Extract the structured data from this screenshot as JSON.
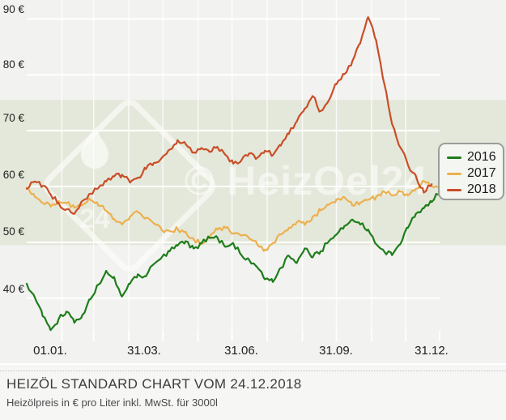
{
  "watermark": {
    "text": "© HeizOel24",
    "badge": "24"
  },
  "caption": {
    "title": "HEIZÖL STANDARD CHART VOM 24.12.2018",
    "subtitle": "Heizölpreis in € pro Liter inkl. MwSt. für 3000l"
  },
  "chart_data": {
    "type": "line",
    "title": "HEIZÖL STANDARD CHART VOM 24.12.2018",
    "subtitle": "Heizölpreis in € pro Liter inkl. MwSt. für 3000l",
    "xlabel": "",
    "ylabel": "",
    "ylim": [
      32,
      92
    ],
    "grid": true,
    "legend_position": "right",
    "background": "#f2f2f0",
    "band_color": "#e4e8da",
    "grid_color": "#ffffff",
    "band": {
      "from": 49.5,
      "to": 75.5
    },
    "y_ticks": [
      {
        "value": 90,
        "label": "90 €"
      },
      {
        "value": 80,
        "label": "80 €"
      },
      {
        "value": 70,
        "label": "70 €"
      },
      {
        "value": 60,
        "label": "60 €"
      },
      {
        "value": 50,
        "label": "50 €"
      },
      {
        "value": 40,
        "label": "40 €"
      }
    ],
    "x_ticks": [
      {
        "label": "01.01.",
        "day": 0
      },
      {
        "label": "31.03.",
        "day": 89
      },
      {
        "label": "31.06.",
        "day": 180
      },
      {
        "label": "31.09.",
        "day": 272
      },
      {
        "label": "31.12.",
        "day": 364
      }
    ],
    "series": [
      {
        "name": "2016",
        "color": "#1e7d1b",
        "points": [
          [
            0,
            42.6
          ],
          [
            7,
            40.2
          ],
          [
            14,
            36.8
          ],
          [
            21,
            34.3
          ],
          [
            28,
            36.2
          ],
          [
            35,
            37.6
          ],
          [
            42,
            35.6
          ],
          [
            49,
            37.0
          ],
          [
            56,
            39.8
          ],
          [
            63,
            42.4
          ],
          [
            70,
            44.9
          ],
          [
            77,
            43.8
          ],
          [
            84,
            40.3
          ],
          [
            91,
            42.6
          ],
          [
            98,
            44.3
          ],
          [
            105,
            43.9
          ],
          [
            112,
            46.1
          ],
          [
            119,
            47.3
          ],
          [
            126,
            48.4
          ],
          [
            133,
            49.4
          ],
          [
            140,
            50.2
          ],
          [
            147,
            48.9
          ],
          [
            154,
            49.8
          ],
          [
            161,
            50.8
          ],
          [
            168,
            50.9
          ],
          [
            175,
            49.2
          ],
          [
            182,
            49.9
          ],
          [
            189,
            47.8
          ],
          [
            196,
            46.9
          ],
          [
            203,
            45.6
          ],
          [
            210,
            43.4
          ],
          [
            217,
            42.9
          ],
          [
            224,
            45.4
          ],
          [
            231,
            47.6
          ],
          [
            238,
            46.3
          ],
          [
            245,
            48.9
          ],
          [
            252,
            47.3
          ],
          [
            259,
            48.4
          ],
          [
            266,
            50.1
          ],
          [
            273,
            51.4
          ],
          [
            280,
            52.9
          ],
          [
            287,
            54.1
          ],
          [
            294,
            53.2
          ],
          [
            301,
            52.3
          ],
          [
            308,
            49.7
          ],
          [
            315,
            48.4
          ],
          [
            322,
            47.7
          ],
          [
            329,
            49.6
          ],
          [
            336,
            52.6
          ],
          [
            343,
            55.1
          ],
          [
            350,
            56.1
          ],
          [
            357,
            57.2
          ],
          [
            364,
            59.2
          ]
        ]
      },
      {
        "name": "2017",
        "color": "#ecb04f",
        "points": [
          [
            0,
            59.8
          ],
          [
            7,
            58.2
          ],
          [
            14,
            57.1
          ],
          [
            21,
            56.4
          ],
          [
            28,
            57.4
          ],
          [
            35,
            57.0
          ],
          [
            42,
            56.2
          ],
          [
            49,
            56.7
          ],
          [
            56,
            57.6
          ],
          [
            63,
            56.6
          ],
          [
            70,
            55.7
          ],
          [
            77,
            54.2
          ],
          [
            84,
            53.2
          ],
          [
            91,
            54.6
          ],
          [
            98,
            55.4
          ],
          [
            105,
            54.4
          ],
          [
            112,
            53.4
          ],
          [
            119,
            52.2
          ],
          [
            126,
            52.0
          ],
          [
            133,
            52.4
          ],
          [
            140,
            51.9
          ],
          [
            147,
            50.6
          ],
          [
            154,
            49.7
          ],
          [
            161,
            50.9
          ],
          [
            168,
            52.3
          ],
          [
            175,
            52.6
          ],
          [
            182,
            51.6
          ],
          [
            189,
            51.2
          ],
          [
            196,
            50.7
          ],
          [
            203,
            49.7
          ],
          [
            210,
            48.7
          ],
          [
            217,
            49.9
          ],
          [
            224,
            51.4
          ],
          [
            231,
            52.6
          ],
          [
            238,
            53.6
          ],
          [
            245,
            53.1
          ],
          [
            252,
            54.6
          ],
          [
            259,
            55.7
          ],
          [
            266,
            56.7
          ],
          [
            273,
            57.7
          ],
          [
            280,
            58.1
          ],
          [
            287,
            56.6
          ],
          [
            294,
            57.1
          ],
          [
            301,
            57.6
          ],
          [
            308,
            58.1
          ],
          [
            315,
            59.1
          ],
          [
            322,
            58.4
          ],
          [
            329,
            59.1
          ],
          [
            336,
            58.4
          ],
          [
            343,
            59.6
          ],
          [
            350,
            61.0
          ],
          [
            357,
            60.1
          ],
          [
            364,
            59.7
          ]
        ]
      },
      {
        "name": "2018",
        "color": "#c94e28",
        "points": [
          [
            0,
            59.6
          ],
          [
            7,
            60.9
          ],
          [
            14,
            60.1
          ],
          [
            21,
            58.6
          ],
          [
            28,
            57.1
          ],
          [
            35,
            55.9
          ],
          [
            42,
            55.1
          ],
          [
            49,
            57.4
          ],
          [
            56,
            58.7
          ],
          [
            63,
            59.7
          ],
          [
            70,
            60.9
          ],
          [
            77,
            61.8
          ],
          [
            84,
            62.1
          ],
          [
            91,
            60.7
          ],
          [
            98,
            61.6
          ],
          [
            105,
            63.1
          ],
          [
            112,
            64.2
          ],
          [
            119,
            65.1
          ],
          [
            126,
            66.6
          ],
          [
            133,
            68.3
          ],
          [
            140,
            67.6
          ],
          [
            147,
            66.1
          ],
          [
            154,
            66.9
          ],
          [
            161,
            66.2
          ],
          [
            168,
            67.1
          ],
          [
            175,
            65.7
          ],
          [
            182,
            64.1
          ],
          [
            189,
            64.6
          ],
          [
            196,
            65.9
          ],
          [
            203,
            65.1
          ],
          [
            210,
            66.4
          ],
          [
            217,
            65.6
          ],
          [
            224,
            67.3
          ],
          [
            231,
            69.4
          ],
          [
            238,
            71.6
          ],
          [
            245,
            73.9
          ],
          [
            252,
            76.2
          ],
          [
            259,
            73.5
          ],
          [
            266,
            75.3
          ],
          [
            273,
            78.3
          ],
          [
            280,
            80.1
          ],
          [
            287,
            82.4
          ],
          [
            294,
            85.6
          ],
          [
            301,
            90.3
          ],
          [
            308,
            86.2
          ],
          [
            315,
            78.6
          ],
          [
            322,
            71.2
          ],
          [
            329,
            67.1
          ],
          [
            336,
            63.9
          ],
          [
            343,
            61.9
          ],
          [
            350,
            58.9
          ],
          [
            357,
            60.4
          ]
        ]
      }
    ]
  }
}
